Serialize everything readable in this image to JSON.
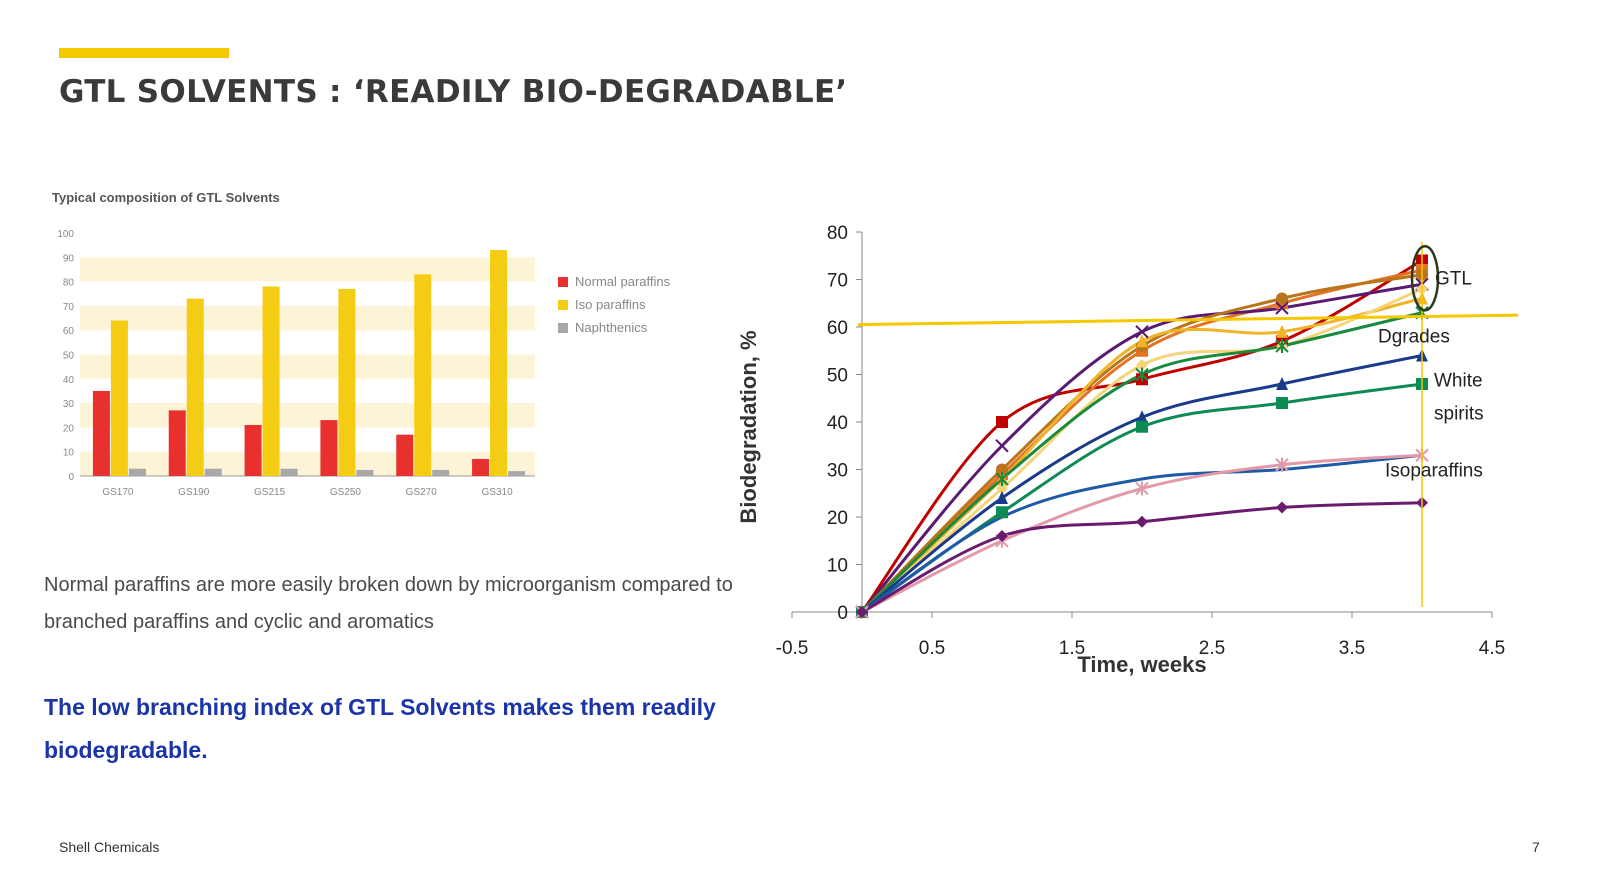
{
  "slide": {
    "title": "GTL SOLVENTS : ‘READILY BIO-DEGRADABLE’",
    "body_text": "Normal paraffins are more easily broken down by microorganism compared to branched paraffins and cyclic and aromatics",
    "key_message": "The low branching index of GTL Solvents makes them readily biodegradable.",
    "footer": "Shell Chemicals",
    "page_number": "7",
    "accent_color": "#f5c800"
  },
  "chart_data": [
    {
      "type": "bar",
      "title": "Typical composition of GTL Solvents",
      "categories": [
        "GS170",
        "GS190",
        "GS215",
        "GS250",
        "GS270",
        "GS310"
      ],
      "series": [
        {
          "name": "Normal paraffins",
          "color": "#e8312f",
          "values": [
            35,
            27,
            21,
            23,
            17,
            7
          ]
        },
        {
          "name": "Iso paraffins",
          "color": "#f5cc14",
          "values": [
            64,
            73,
            78,
            77,
            83,
            93
          ]
        },
        {
          "name": "Naphthenics",
          "color": "#a8a8a8",
          "values": [
            3,
            3,
            3,
            2.5,
            2.5,
            2
          ]
        }
      ],
      "ylim": [
        0,
        100
      ],
      "yticks": [
        0,
        10,
        20,
        30,
        40,
        50,
        60,
        70,
        80,
        90,
        100
      ],
      "legend": "right",
      "grid": "banded"
    },
    {
      "type": "line",
      "xlabel": "Time, weeks",
      "ylabel": "Biodegradation, %",
      "xlim": [
        -0.5,
        4.5
      ],
      "ylim": [
        0,
        80
      ],
      "xticks": [
        -0.5,
        0.5,
        1.5,
        2.5,
        3.5,
        4.5
      ],
      "yticks": [
        0,
        10,
        20,
        30,
        40,
        50,
        60,
        70,
        80
      ],
      "threshold_line": {
        "y_start": 60.5,
        "y_end": 62.5,
        "color": "#f5c800"
      },
      "week4_marker": {
        "x": 4,
        "color": "#f5c800"
      },
      "annotations": [
        "GTL",
        "Dgrades",
        "White",
        "spirits",
        "Isoparaffins"
      ],
      "series": [
        {
          "color": "#c00000",
          "marker": "square",
          "x": [
            0,
            1,
            2,
            3,
            4
          ],
          "y": [
            0,
            40,
            49,
            57,
            74
          ]
        },
        {
          "color": "#e37222",
          "marker": "square",
          "x": [
            0,
            1,
            2,
            3,
            4
          ],
          "y": [
            0,
            29,
            55,
            65,
            72
          ]
        },
        {
          "color": "#5b1a72",
          "marker": "x",
          "x": [
            0,
            1,
            2,
            3,
            4
          ],
          "y": [
            0,
            35,
            59,
            64,
            69
          ]
        },
        {
          "color": "#b8751a",
          "marker": "circle",
          "x": [
            0,
            1,
            2,
            3,
            4
          ],
          "y": [
            0,
            30,
            56,
            66,
            71
          ]
        },
        {
          "color": "#f0b429",
          "marker": "triangle",
          "x": [
            0,
            1,
            2,
            3,
            4
          ],
          "y": [
            0,
            28,
            57,
            59,
            66
          ]
        },
        {
          "color": "#f6d57a",
          "marker": "diamond",
          "x": [
            0,
            1,
            2,
            3,
            4
          ],
          "y": [
            0,
            26,
            52,
            56,
            68
          ]
        },
        {
          "color": "#1a8a3f",
          "marker": "star",
          "x": [
            0,
            1,
            2,
            3,
            4
          ],
          "y": [
            0,
            28,
            50,
            56,
            63
          ]
        },
        {
          "color": "#1a3a8a",
          "marker": "triangle",
          "x": [
            0,
            1,
            2,
            3,
            4
          ],
          "y": [
            0,
            24,
            41,
            48,
            54
          ]
        },
        {
          "color": "#0e8a55",
          "marker": "square",
          "x": [
            0,
            1,
            2,
            3,
            4
          ],
          "y": [
            0,
            21,
            39,
            44,
            48
          ]
        },
        {
          "color": "#1f5aa6",
          "marker": "none",
          "x": [
            0,
            1,
            2,
            3,
            4
          ],
          "y": [
            0,
            20,
            28,
            30,
            33
          ]
        },
        {
          "color": "#e39aa8",
          "marker": "star",
          "x": [
            0,
            1,
            2,
            3,
            4
          ],
          "y": [
            0,
            15,
            26,
            31,
            33
          ]
        },
        {
          "color": "#6a1b6e",
          "marker": "diamond",
          "x": [
            0,
            1,
            2,
            3,
            4
          ],
          "y": [
            0,
            16,
            19,
            22,
            23
          ]
        }
      ]
    }
  ]
}
